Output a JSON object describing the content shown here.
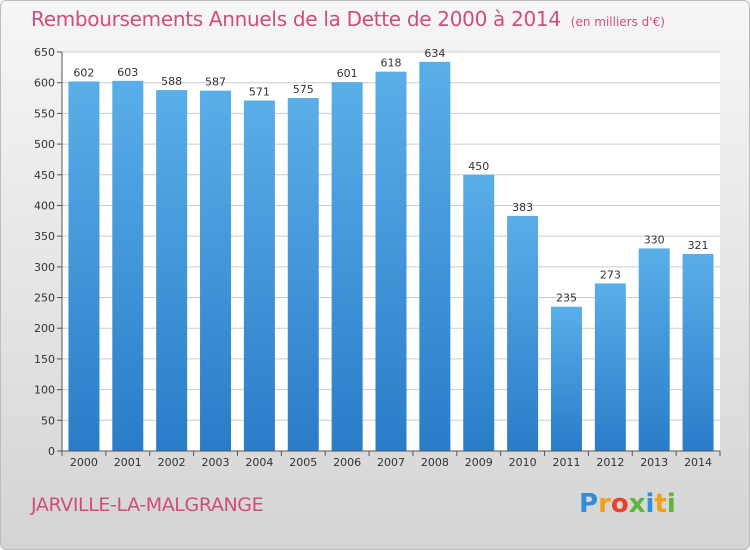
{
  "chart_data": {
    "type": "bar",
    "title": "Remboursements Annuels de la Dette de 2000 à 2014",
    "subtitle": "(en milliers d'€)",
    "categories": [
      "2000",
      "2001",
      "2002",
      "2003",
      "2004",
      "2005",
      "2006",
      "2007",
      "2008",
      "2009",
      "2010",
      "2011",
      "2012",
      "2013",
      "2014"
    ],
    "values": [
      602,
      603,
      588,
      587,
      571,
      575,
      601,
      618,
      634,
      450,
      383,
      235,
      273,
      330,
      321
    ],
    "ylim": [
      0,
      650
    ],
    "yticks": [
      0,
      50,
      100,
      150,
      200,
      250,
      300,
      350,
      400,
      450,
      500,
      550,
      600,
      650
    ],
    "xlabel": "",
    "ylabel": "",
    "grid": true,
    "bar_color_top": "#5aaee8",
    "bar_color_bottom": "#2a7cc8"
  },
  "footer": {
    "city": "JARVILLE-LA-MALGRANGE",
    "logo_letters": [
      "P",
      "r",
      "o",
      "x",
      "i",
      "t",
      "i"
    ],
    "logo_colors": [
      "#2f8fd8",
      "#f2a01c",
      "#e8412c",
      "#5fb43a",
      "#2f8fd8",
      "#f2a01c",
      "#5fb43a"
    ]
  },
  "colors": {
    "title": "#cf4d7d",
    "grid": "#cccccc"
  }
}
